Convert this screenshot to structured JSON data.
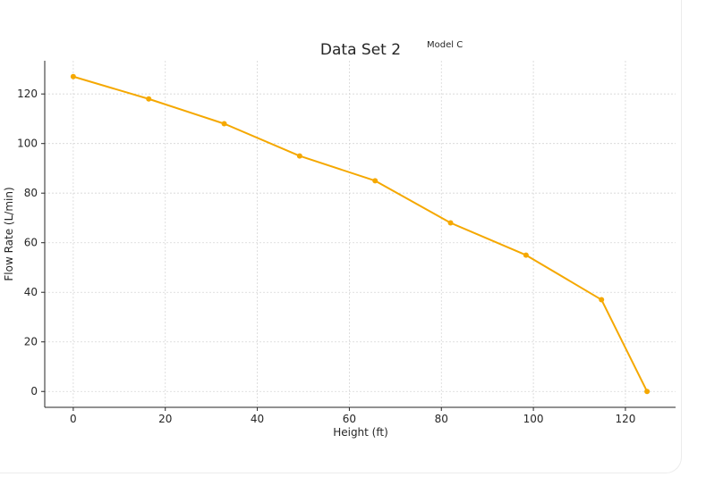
{
  "chart_data": {
    "type": "line",
    "title": "Data Set 2",
    "xlabel": "Height (ft)",
    "ylabel": "Flow Rate (L/min)",
    "x": [
      0,
      16.4,
      32.8,
      49.2,
      65.6,
      82,
      98.4,
      114.8,
      124.7
    ],
    "series": [
      {
        "name": "Model C",
        "values": [
          127,
          118,
          108,
          95,
          85,
          68,
          55,
          37,
          0
        ],
        "color": "#f5a800"
      }
    ],
    "xticks": [
      0,
      20,
      40,
      60,
      80,
      100,
      120
    ],
    "yticks": [
      0,
      20,
      40,
      60,
      80,
      100,
      120
    ],
    "xlim": [
      -6.2,
      130.9
    ],
    "ylim": [
      -6.4,
      133.4
    ],
    "grid": true,
    "legend": "top-right"
  }
}
